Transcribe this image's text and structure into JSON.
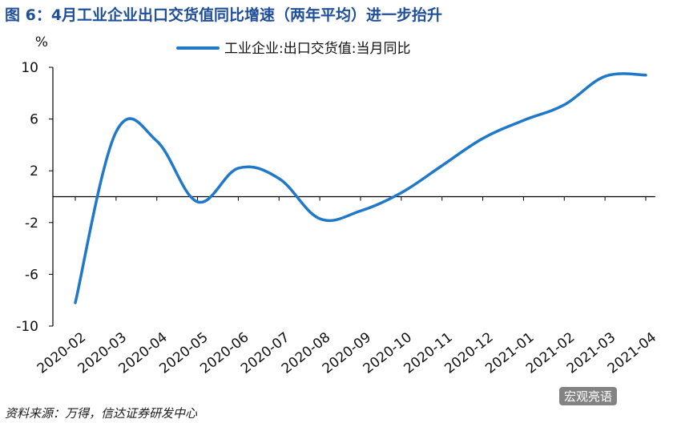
{
  "title": "图 6：4月工业企业出口交货值同比增速（两年平均）进一步抬升",
  "source": "资料来源：万得，信达证券研发中心",
  "watermark": "宏观亮语",
  "colors": {
    "title": "#1f4e9a",
    "line": "#1f78c8",
    "axis": "#000000"
  },
  "chart_data": {
    "type": "line",
    "title": "图 6：4月工业企业出口交货值同比增速（两年平均）进一步抬升",
    "ylabel": "%",
    "xlabel": "",
    "ylim": [
      -10,
      10
    ],
    "yticks": [
      10,
      6,
      2,
      -2,
      -6,
      -10
    ],
    "ytick_labels": [
      "10",
      "6",
      "2",
      "-2",
      "-6",
      "-10"
    ],
    "grid": false,
    "legend_position": "top",
    "categories": [
      "2020-02",
      "2020-03",
      "2020-04",
      "2020-05",
      "2020-06",
      "2020-07",
      "2020-08",
      "2020-09",
      "2020-10",
      "2020-11",
      "2020-12",
      "2021-01",
      "2021-02",
      "2021-03",
      "2021-04"
    ],
    "series": [
      {
        "name": "工业企业:出口交货值:当月同比",
        "values": [
          -8.2,
          5.0,
          4.3,
          -0.4,
          2.2,
          1.4,
          -1.7,
          -1.1,
          0.3,
          2.4,
          4.5,
          5.9,
          7.1,
          9.3,
          9.4
        ]
      }
    ]
  }
}
